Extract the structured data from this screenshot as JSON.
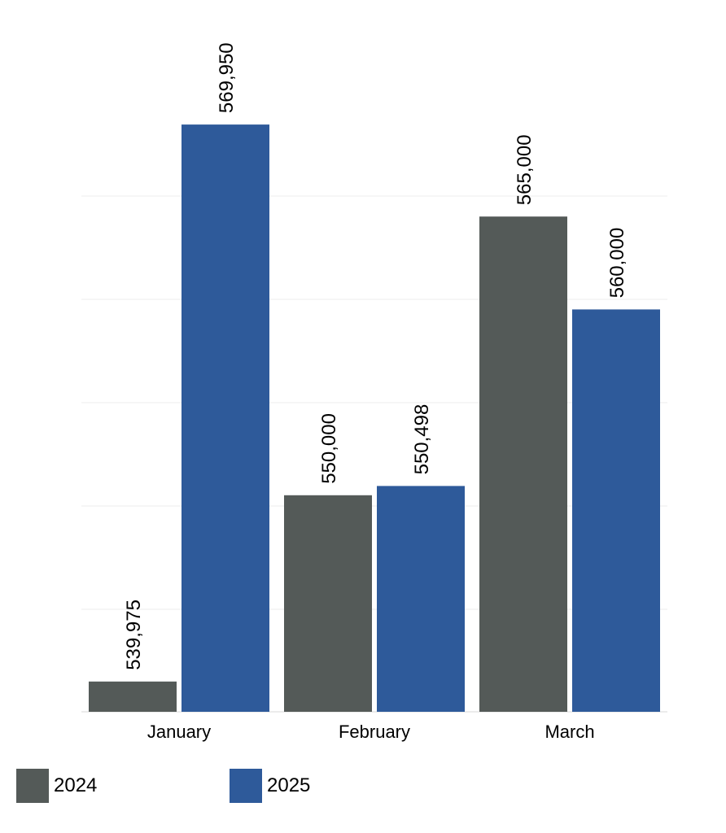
{
  "chart_data": {
    "type": "bar",
    "categories": [
      "January",
      "February",
      "March"
    ],
    "series": [
      {
        "name": "2024",
        "values": [
          539975,
          550000,
          565000
        ],
        "color": "#545a58"
      },
      {
        "name": "2025",
        "values": [
          569950,
          550498,
          560000
        ],
        "color": "#2e5a9a"
      }
    ],
    "data_labels": [
      [
        "539,975",
        "550,000",
        "565,000"
      ],
      [
        "569,950",
        "550,498",
        "560,000"
      ]
    ],
    "title": "",
    "xlabel": "",
    "ylabel": "",
    "y_axis_visible": false,
    "grid": true,
    "legend_placement": "bottom-left"
  }
}
